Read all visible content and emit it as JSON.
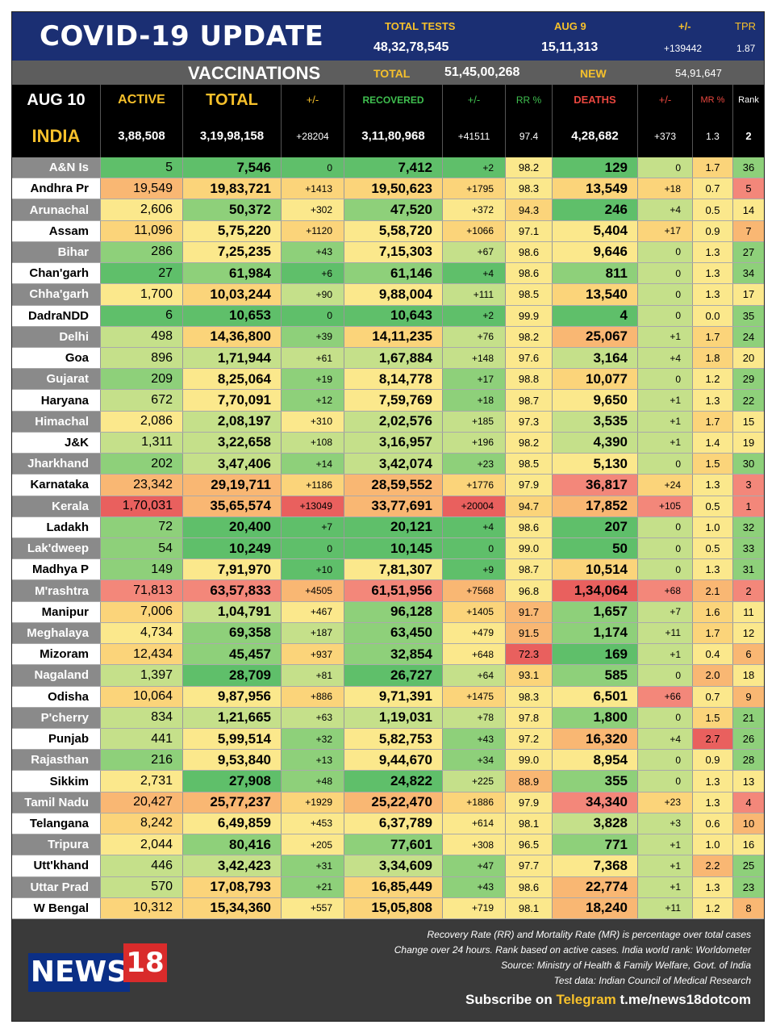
{
  "header": {
    "title": "COVID-19 UPDATE",
    "total_tests_label": "TOTAL TESTS",
    "total_tests": "48,32,78,545",
    "aug9_label": "AUG 9",
    "aug9_tests": "15,11,313",
    "change_label": "+/-",
    "change_value": "+139442",
    "tpr_label": "TPR",
    "tpr_value": "1.87"
  },
  "vaccinations": {
    "title": "VACCINATIONS",
    "total_label": "TOTAL",
    "total": "51,45,00,268",
    "new_label": "NEW",
    "new": "54,91,647"
  },
  "columns": {
    "date": "AUG 10",
    "active": "ACTIVE",
    "total": "TOTAL",
    "total_change": "+/-",
    "recovered": "RECOVERED",
    "recovered_change": "+/-",
    "rr": "RR %",
    "deaths": "DEATHS",
    "deaths_change": "+/-",
    "mr": "MR %",
    "rank": "Rank"
  },
  "india": {
    "name": "INDIA",
    "active": "3,88,508",
    "total": "3,19,98,158",
    "total_change": "+28204",
    "recovered": "3,11,80,968",
    "recovered_change": "+41511",
    "rr": "97.4",
    "deaths": "4,28,682",
    "deaths_change": "+373",
    "mr": "1.3",
    "rank": "2"
  },
  "states": [
    {
      "name": "A&N Is",
      "active": "5",
      "total": "7,546",
      "tc": "0",
      "rec": "7,412",
      "rc": "+2",
      "rr": "98.2",
      "deaths": "129",
      "dc": "0",
      "mr": "1.7",
      "rank": "36"
    },
    {
      "name": "Andhra Pr",
      "active": "19,549",
      "total": "19,83,721",
      "tc": "+1413",
      "rec": "19,50,623",
      "rc": "+1795",
      "rr": "98.3",
      "deaths": "13,549",
      "dc": "+18",
      "mr": "0.7",
      "rank": "5"
    },
    {
      "name": "Arunachal",
      "active": "2,606",
      "total": "50,372",
      "tc": "+302",
      "rec": "47,520",
      "rc": "+372",
      "rr": "94.3",
      "deaths": "246",
      "dc": "+4",
      "mr": "0.5",
      "rank": "14"
    },
    {
      "name": "Assam",
      "active": "11,096",
      "total": "5,75,220",
      "tc": "+1120",
      "rec": "5,58,720",
      "rc": "+1066",
      "rr": "97.1",
      "deaths": "5,404",
      "dc": "+17",
      "mr": "0.9",
      "rank": "7"
    },
    {
      "name": "Bihar",
      "active": "286",
      "total": "7,25,235",
      "tc": "+43",
      "rec": "7,15,303",
      "rc": "+67",
      "rr": "98.6",
      "deaths": "9,646",
      "dc": "0",
      "mr": "1.3",
      "rank": "27"
    },
    {
      "name": "Chan'garh",
      "active": "27",
      "total": "61,984",
      "tc": "+6",
      "rec": "61,146",
      "rc": "+4",
      "rr": "98.6",
      "deaths": "811",
      "dc": "0",
      "mr": "1.3",
      "rank": "34"
    },
    {
      "name": "Chha'garh",
      "active": "1,700",
      "total": "10,03,244",
      "tc": "+90",
      "rec": "9,88,004",
      "rc": "+111",
      "rr": "98.5",
      "deaths": "13,540",
      "dc": "0",
      "mr": "1.3",
      "rank": "17"
    },
    {
      "name": "DadraNDD",
      "active": "6",
      "total": "10,653",
      "tc": "0",
      "rec": "10,643",
      "rc": "+2",
      "rr": "99.9",
      "deaths": "4",
      "dc": "0",
      "mr": "0.0",
      "rank": "35"
    },
    {
      "name": "Delhi",
      "active": "498",
      "total": "14,36,800",
      "tc": "+39",
      "rec": "14,11,235",
      "rc": "+76",
      "rr": "98.2",
      "deaths": "25,067",
      "dc": "+1",
      "mr": "1.7",
      "rank": "24"
    },
    {
      "name": "Goa",
      "active": "896",
      "total": "1,71,944",
      "tc": "+61",
      "rec": "1,67,884",
      "rc": "+148",
      "rr": "97.6",
      "deaths": "3,164",
      "dc": "+4",
      "mr": "1.8",
      "rank": "20"
    },
    {
      "name": "Gujarat",
      "active": "209",
      "total": "8,25,064",
      "tc": "+19",
      "rec": "8,14,778",
      "rc": "+17",
      "rr": "98.8",
      "deaths": "10,077",
      "dc": "0",
      "mr": "1.2",
      "rank": "29"
    },
    {
      "name": "Haryana",
      "active": "672",
      "total": "7,70,091",
      "tc": "+12",
      "rec": "7,59,769",
      "rc": "+18",
      "rr": "98.7",
      "deaths": "9,650",
      "dc": "+1",
      "mr": "1.3",
      "rank": "22"
    },
    {
      "name": "Himachal",
      "active": "2,086",
      "total": "2,08,197",
      "tc": "+310",
      "rec": "2,02,576",
      "rc": "+185",
      "rr": "97.3",
      "deaths": "3,535",
      "dc": "+1",
      "mr": "1.7",
      "rank": "15"
    },
    {
      "name": "J&K",
      "active": "1,311",
      "total": "3,22,658",
      "tc": "+108",
      "rec": "3,16,957",
      "rc": "+196",
      "rr": "98.2",
      "deaths": "4,390",
      "dc": "+1",
      "mr": "1.4",
      "rank": "19"
    },
    {
      "name": "Jharkhand",
      "active": "202",
      "total": "3,47,406",
      "tc": "+14",
      "rec": "3,42,074",
      "rc": "+23",
      "rr": "98.5",
      "deaths": "5,130",
      "dc": "0",
      "mr": "1.5",
      "rank": "30"
    },
    {
      "name": "Karnataka",
      "active": "23,342",
      "total": "29,19,711",
      "tc": "+1186",
      "rec": "28,59,552",
      "rc": "+1776",
      "rr": "97.9",
      "deaths": "36,817",
      "dc": "+24",
      "mr": "1.3",
      "rank": "3"
    },
    {
      "name": "Kerala",
      "active": "1,70,031",
      "total": "35,65,574",
      "tc": "+13049",
      "rec": "33,77,691",
      "rc": "+20004",
      "rr": "94.7",
      "deaths": "17,852",
      "dc": "+105",
      "mr": "0.5",
      "rank": "1"
    },
    {
      "name": "Ladakh",
      "active": "72",
      "total": "20,400",
      "tc": "+7",
      "rec": "20,121",
      "rc": "+4",
      "rr": "98.6",
      "deaths": "207",
      "dc": "0",
      "mr": "1.0",
      "rank": "32"
    },
    {
      "name": "Lak'dweep",
      "active": "54",
      "total": "10,249",
      "tc": "0",
      "rec": "10,145",
      "rc": "0",
      "rr": "99.0",
      "deaths": "50",
      "dc": "0",
      "mr": "0.5",
      "rank": "33"
    },
    {
      "name": "Madhya P",
      "active": "149",
      "total": "7,91,970",
      "tc": "+10",
      "rec": "7,81,307",
      "rc": "+9",
      "rr": "98.7",
      "deaths": "10,514",
      "dc": "0",
      "mr": "1.3",
      "rank": "31"
    },
    {
      "name": "M'rashtra",
      "active": "71,813",
      "total": "63,57,833",
      "tc": "+4505",
      "rec": "61,51,956",
      "rc": "+7568",
      "rr": "96.8",
      "deaths": "1,34,064",
      "dc": "+68",
      "mr": "2.1",
      "rank": "2"
    },
    {
      "name": "Manipur",
      "active": "7,006",
      "total": "1,04,791",
      "tc": "+467",
      "rec": "96,128",
      "rc": "+1405",
      "rr": "91.7",
      "deaths": "1,657",
      "dc": "+7",
      "mr": "1.6",
      "rank": "11"
    },
    {
      "name": "Meghalaya",
      "active": "4,734",
      "total": "69,358",
      "tc": "+187",
      "rec": "63,450",
      "rc": "+479",
      "rr": "91.5",
      "deaths": "1,174",
      "dc": "+11",
      "mr": "1.7",
      "rank": "12"
    },
    {
      "name": "Mizoram",
      "active": "12,434",
      "total": "45,457",
      "tc": "+937",
      "rec": "32,854",
      "rc": "+648",
      "rr": "72.3",
      "deaths": "169",
      "dc": "+1",
      "mr": "0.4",
      "rank": "6"
    },
    {
      "name": "Nagaland",
      "active": "1,397",
      "total": "28,709",
      "tc": "+81",
      "rec": "26,727",
      "rc": "+64",
      "rr": "93.1",
      "deaths": "585",
      "dc": "0",
      "mr": "2.0",
      "rank": "18"
    },
    {
      "name": "Odisha",
      "active": "10,064",
      "total": "9,87,956",
      "tc": "+886",
      "rec": "9,71,391",
      "rc": "+1475",
      "rr": "98.3",
      "deaths": "6,501",
      "dc": "+66",
      "mr": "0.7",
      "rank": "9"
    },
    {
      "name": "P'cherry",
      "active": "834",
      "total": "1,21,665",
      "tc": "+63",
      "rec": "1,19,031",
      "rc": "+78",
      "rr": "97.8",
      "deaths": "1,800",
      "dc": "0",
      "mr": "1.5",
      "rank": "21"
    },
    {
      "name": "Punjab",
      "active": "441",
      "total": "5,99,514",
      "tc": "+32",
      "rec": "5,82,753",
      "rc": "+43",
      "rr": "97.2",
      "deaths": "16,320",
      "dc": "+4",
      "mr": "2.7",
      "rank": "26"
    },
    {
      "name": "Rajasthan",
      "active": "216",
      "total": "9,53,840",
      "tc": "+13",
      "rec": "9,44,670",
      "rc": "+34",
      "rr": "99.0",
      "deaths": "8,954",
      "dc": "0",
      "mr": "0.9",
      "rank": "28"
    },
    {
      "name": "Sikkim",
      "active": "2,731",
      "total": "27,908",
      "tc": "+48",
      "rec": "24,822",
      "rc": "+225",
      "rr": "88.9",
      "deaths": "355",
      "dc": "0",
      "mr": "1.3",
      "rank": "13"
    },
    {
      "name": "Tamil Nadu",
      "active": "20,427",
      "total": "25,77,237",
      "tc": "+1929",
      "rec": "25,22,470",
      "rc": "+1886",
      "rr": "97.9",
      "deaths": "34,340",
      "dc": "+23",
      "mr": "1.3",
      "rank": "4"
    },
    {
      "name": "Telangana",
      "active": "8,242",
      "total": "6,49,859",
      "tc": "+453",
      "rec": "6,37,789",
      "rc": "+614",
      "rr": "98.1",
      "deaths": "3,828",
      "dc": "+3",
      "mr": "0.6",
      "rank": "10"
    },
    {
      "name": "Tripura",
      "active": "2,044",
      "total": "80,416",
      "tc": "+205",
      "rec": "77,601",
      "rc": "+308",
      "rr": "96.5",
      "deaths": "771",
      "dc": "+1",
      "mr": "1.0",
      "rank": "16"
    },
    {
      "name": "Utt'khand",
      "active": "446",
      "total": "3,42,423",
      "tc": "+31",
      "rec": "3,34,609",
      "rc": "+47",
      "rr": "97.7",
      "deaths": "7,368",
      "dc": "+1",
      "mr": "2.2",
      "rank": "25"
    },
    {
      "name": "Uttar Prad",
      "active": "570",
      "total": "17,08,793",
      "tc": "+21",
      "rec": "16,85,449",
      "rc": "+43",
      "rr": "98.6",
      "deaths": "22,774",
      "dc": "+1",
      "mr": "1.3",
      "rank": "23"
    },
    {
      "name": "W Bengal",
      "active": "10,312",
      "total": "15,34,360",
      "tc": "+557",
      "rec": "15,05,808",
      "rc": "+719",
      "rr": "98.1",
      "deaths": "18,240",
      "dc": "+11",
      "mr": "1.2",
      "rank": "8"
    }
  ],
  "cell_colors": {
    "green_dark": "#5fbf6a",
    "green": "#8ed07a",
    "green_light": "#c5e08a",
    "yellow": "#fbe88c",
    "yellow_orange": "#fbd47a",
    "orange": "#f9b773",
    "red_light": "#f3877a",
    "red": "#e9605e"
  },
  "footer": {
    "logo_news": "NEWS",
    "logo_18": "18",
    "note1": "Recovery Rate (RR) and Mortality Rate (MR) is percentage over total cases",
    "note2": "Change over 24 hours. Rank based on active cases. India world rank: Worldometer",
    "note3": "Source: Ministry of Health & Family Welfare, Govt. of India",
    "note4": "Test data: Indian Council of Medical Research",
    "subscribe_prefix": "Subscribe on",
    "telegram": "Telegram",
    "link": "t.me/news18dotcom"
  }
}
